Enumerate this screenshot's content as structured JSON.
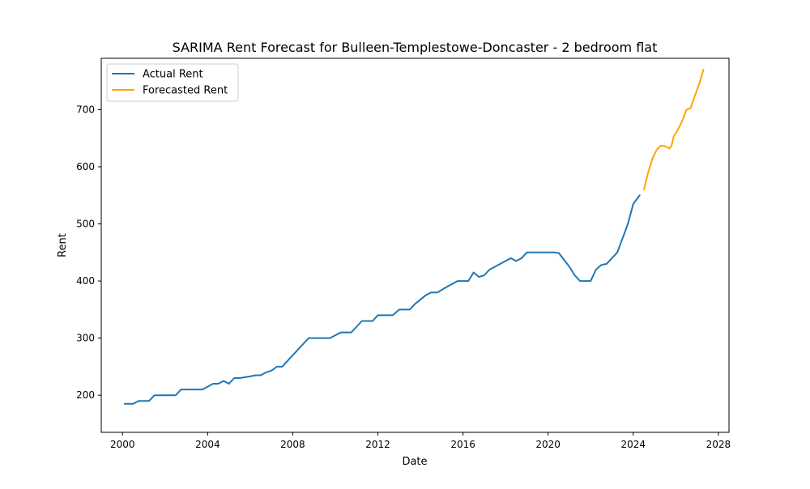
{
  "chart_data": {
    "type": "line",
    "title": "SARIMA Rent Forecast for Bulleen-Templestowe-Doncaster - 2 bedroom flat",
    "xlabel": "Date",
    "ylabel": "Rent",
    "xlim": [
      1999.0,
      2028.5
    ],
    "ylim": [
      135,
      790
    ],
    "x_ticks": [
      2000,
      2004,
      2008,
      2012,
      2016,
      2020,
      2024,
      2028
    ],
    "y_ticks": [
      200,
      300,
      400,
      500,
      600,
      700
    ],
    "grid": false,
    "legend_position": "top-left",
    "series": [
      {
        "name": "Actual Rent",
        "color": "#1f77b4",
        "x": [
          2000.1,
          2000.5,
          2000.75,
          2001.25,
          2001.5,
          2002.5,
          2002.75,
          2003.75,
          2004.0,
          2004.25,
          2004.5,
          2004.75,
          2005.0,
          2005.25,
          2005.5,
          2006.0,
          2006.25,
          2006.5,
          2006.75,
          2007.0,
          2007.25,
          2007.5,
          2008.75,
          2009.5,
          2009.75,
          2010.25,
          2010.75,
          2011.0,
          2011.25,
          2011.75,
          2012.0,
          2012.7,
          2013.0,
          2013.25,
          2013.5,
          2013.75,
          2014.25,
          2014.5,
          2014.8,
          2015.25,
          2015.5,
          2015.75,
          2016.25,
          2016.5,
          2016.75,
          2017.0,
          2017.25,
          2018.25,
          2018.5,
          2018.75,
          2019.0,
          2020.0,
          2020.25,
          2020.5,
          2020.75,
          2021.0,
          2021.25,
          2021.5,
          2022.0,
          2022.25,
          2022.5,
          2022.75,
          2023.25,
          2023.75,
          2024.0,
          2024.3
        ],
        "values": [
          185,
          185,
          190,
          190,
          200,
          200,
          210,
          210,
          215,
          220,
          220,
          225,
          220,
          230,
          230,
          233,
          235,
          235,
          240,
          243,
          250,
          250,
          300,
          300,
          300,
          310,
          310,
          320,
          330,
          330,
          340,
          340,
          350,
          350,
          350,
          360,
          375,
          380,
          380,
          390,
          395,
          400,
          400,
          415,
          407,
          410,
          420,
          440,
          435,
          440,
          450,
          450,
          450,
          449,
          437,
          425,
          410,
          400,
          400,
          420,
          428,
          430,
          450,
          500,
          535,
          550
        ]
      },
      {
        "name": "Forecasted Rent",
        "color": "#ffa500",
        "x": [
          2024.5,
          2024.7,
          2024.9,
          2025.1,
          2025.3,
          2025.5,
          2025.7,
          2025.8,
          2025.9,
          2026.1,
          2026.3,
          2026.5,
          2026.7,
          2026.9,
          2027.1,
          2027.3
        ],
        "values": [
          560,
          590,
          614,
          630,
          637,
          636,
          632,
          637,
          653,
          665,
          680,
          700,
          703,
          725,
          745,
          770
        ]
      }
    ]
  }
}
